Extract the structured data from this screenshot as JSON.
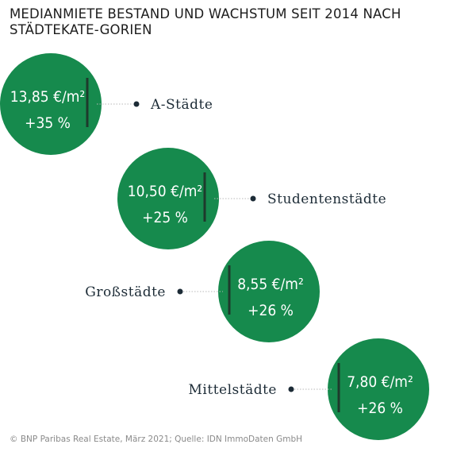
{
  "title": "MEDIANMIETE BESTAND UND WACHSTUM SEIT 2014 NACH STÄDTEKATE-GORIEN",
  "footer": "© BNP Paribas Real Estate, März 2021; Quelle: IDN ImmoDaten GmbH",
  "colors": {
    "circle": "#168a4d",
    "text_on_circle": "#ffffff",
    "divider": "#1e3a2c",
    "dot": "#1c2b36",
    "leader": "#b8b8b8",
    "label": "#1c2b36"
  },
  "chart_data": {
    "type": "bubble-list",
    "categories": [
      "A-Städte",
      "Studentenstädte",
      "Großstädte",
      "Mittelstädte"
    ],
    "series": [
      {
        "values": [
          13.85,
          10.5,
          8.55,
          7.8
        ],
        "labels": [
          "13,85 €/m²",
          "10,50 €/m²",
          "8,55 €/m²",
          "7,80 €/m²"
        ]
      },
      {
        "values": [
          35,
          25,
          26,
          26
        ],
        "labels": [
          "+35 %",
          "+25 %",
          "+26 %",
          "+26 %"
        ]
      }
    ]
  }
}
